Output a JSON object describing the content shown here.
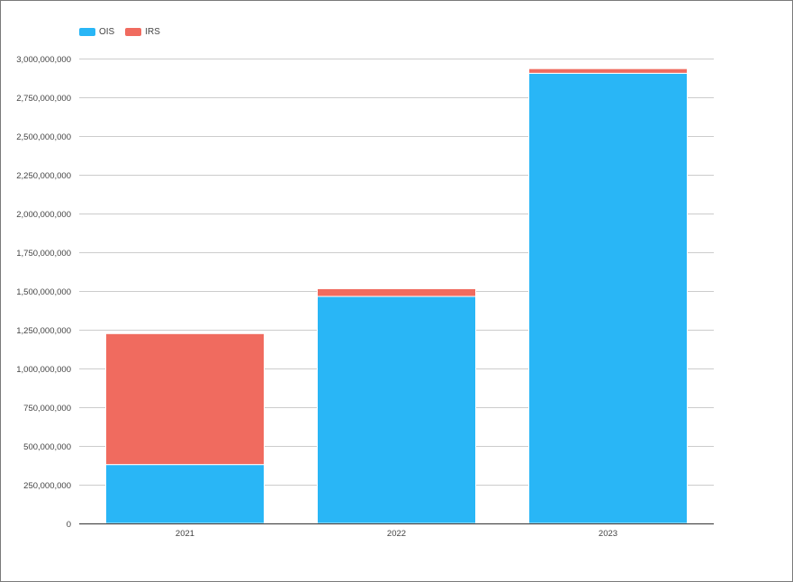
{
  "chart_data": {
    "type": "bar",
    "stacked": true,
    "categories": [
      "2021",
      "2022",
      "2023"
    ],
    "series": [
      {
        "name": "OIS",
        "color": "#29b6f6",
        "values": [
          380000000,
          1465000000,
          2905000000
        ]
      },
      {
        "name": "IRS",
        "color": "#f06b5f",
        "values": [
          845000000,
          50000000,
          30000000
        ]
      }
    ],
    "ylim": [
      0,
      3000000000
    ],
    "yticks": [
      0,
      250000000,
      500000000,
      750000000,
      1000000000,
      1250000000,
      1500000000,
      1750000000,
      2000000000,
      2250000000,
      2500000000,
      2750000000,
      3000000000
    ],
    "ytick_labels": [
      "0",
      "250,000,000",
      "500,000,000",
      "750,000,000",
      "1,000,000,000",
      "1,250,000,000",
      "1,500,000,000",
      "1,750,000,000",
      "2,000,000,000",
      "2,250,000,000",
      "2,500,000,000",
      "2,750,000,000",
      "3,000,000,000"
    ],
    "grid": true,
    "legend_position": "top-left"
  }
}
